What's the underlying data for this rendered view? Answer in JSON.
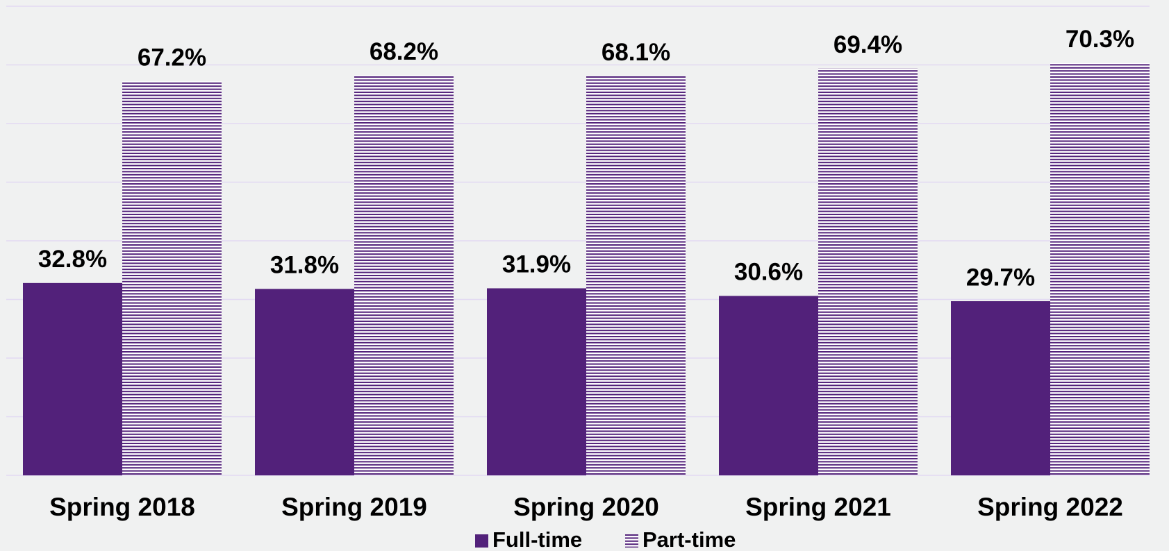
{
  "chart_data": {
    "type": "bar",
    "categories": [
      "Spring 2018",
      "Spring 2019",
      "Spring 2020",
      "Spring 2021",
      "Spring 2022"
    ],
    "series": [
      {
        "name": "Full-time",
        "color": "#52217a",
        "values": [
          32.8,
          31.8,
          31.9,
          30.6,
          29.7
        ],
        "value_labels": [
          "32.8%",
          "31.8%",
          "31.9%",
          "30.6%",
          "29.7%"
        ]
      },
      {
        "name": "Part-time",
        "color": "#52217a",
        "pattern": "horizontal-stripes",
        "values": [
          67.2,
          68.2,
          68.1,
          69.4,
          70.3
        ],
        "value_labels": [
          "67.2%",
          "68.2%",
          "68.1%",
          "69.4%",
          "70.3%"
        ]
      }
    ],
    "ylim": [
      0,
      80
    ],
    "yticks": [
      0,
      10,
      20,
      30,
      40,
      50,
      60,
      70,
      80
    ],
    "grid": true,
    "legend": "bottom"
  }
}
